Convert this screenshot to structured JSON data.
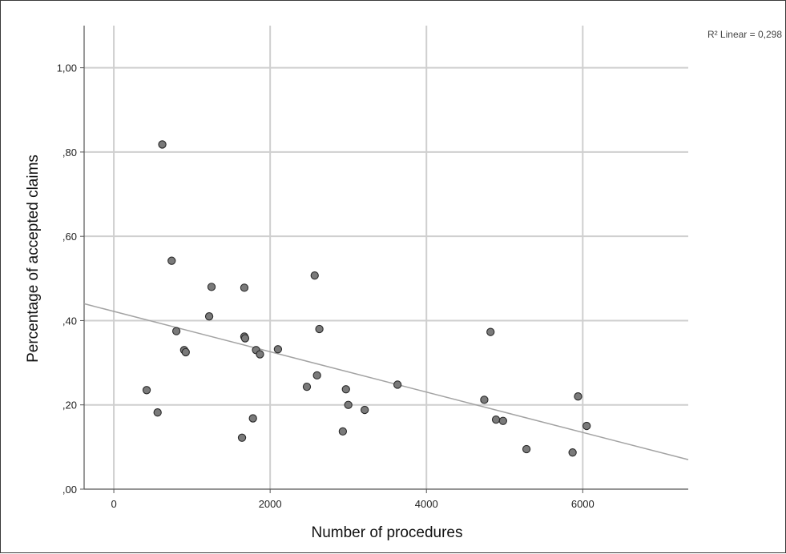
{
  "chart_data": {
    "type": "scatter",
    "xlabel": "Number of procedures",
    "ylabel": "Percentage of accepted claims",
    "fit_label": "R² Linear = 0,298",
    "xlim": [
      -380,
      7350
    ],
    "ylim": [
      0,
      1.1
    ],
    "x_ticks": [
      {
        "value": 0,
        "label": "0"
      },
      {
        "value": 2000,
        "label": "2000"
      },
      {
        "value": 4000,
        "label": "4000"
      },
      {
        "value": 6000,
        "label": "6000"
      }
    ],
    "y_ticks": [
      {
        "value": 0,
        "label": ",00"
      },
      {
        "value": 0.2,
        "label": ",20"
      },
      {
        "value": 0.4,
        "label": ",40"
      },
      {
        "value": 0.6,
        "label": ",60"
      },
      {
        "value": 0.8,
        "label": ",80"
      },
      {
        "value": 1.0,
        "label": "1,00"
      }
    ],
    "grid": true,
    "fit_line": {
      "x": [
        -380,
        7350
      ],
      "y": [
        0.44,
        0.07
      ]
    },
    "points": [
      {
        "x": 620,
        "y": 0.818
      },
      {
        "x": 740,
        "y": 0.542
      },
      {
        "x": 420,
        "y": 0.235
      },
      {
        "x": 560,
        "y": 0.182
      },
      {
        "x": 800,
        "y": 0.375
      },
      {
        "x": 900,
        "y": 0.33
      },
      {
        "x": 920,
        "y": 0.325
      },
      {
        "x": 1250,
        "y": 0.48
      },
      {
        "x": 1220,
        "y": 0.41
      },
      {
        "x": 1670,
        "y": 0.478
      },
      {
        "x": 1670,
        "y": 0.362
      },
      {
        "x": 1680,
        "y": 0.358
      },
      {
        "x": 1820,
        "y": 0.33
      },
      {
        "x": 1870,
        "y": 0.32
      },
      {
        "x": 2100,
        "y": 0.332
      },
      {
        "x": 1780,
        "y": 0.168
      },
      {
        "x": 1640,
        "y": 0.122
      },
      {
        "x": 2570,
        "y": 0.507
      },
      {
        "x": 2630,
        "y": 0.38
      },
      {
        "x": 2600,
        "y": 0.27
      },
      {
        "x": 2470,
        "y": 0.243
      },
      {
        "x": 2970,
        "y": 0.237
      },
      {
        "x": 3000,
        "y": 0.2
      },
      {
        "x": 3210,
        "y": 0.188
      },
      {
        "x": 2930,
        "y": 0.137
      },
      {
        "x": 3630,
        "y": 0.248
      },
      {
        "x": 4820,
        "y": 0.373
      },
      {
        "x": 4740,
        "y": 0.212
      },
      {
        "x": 4890,
        "y": 0.165
      },
      {
        "x": 4980,
        "y": 0.162
      },
      {
        "x": 5280,
        "y": 0.095
      },
      {
        "x": 5940,
        "y": 0.22
      },
      {
        "x": 6050,
        "y": 0.15
      },
      {
        "x": 5870,
        "y": 0.087
      }
    ]
  }
}
